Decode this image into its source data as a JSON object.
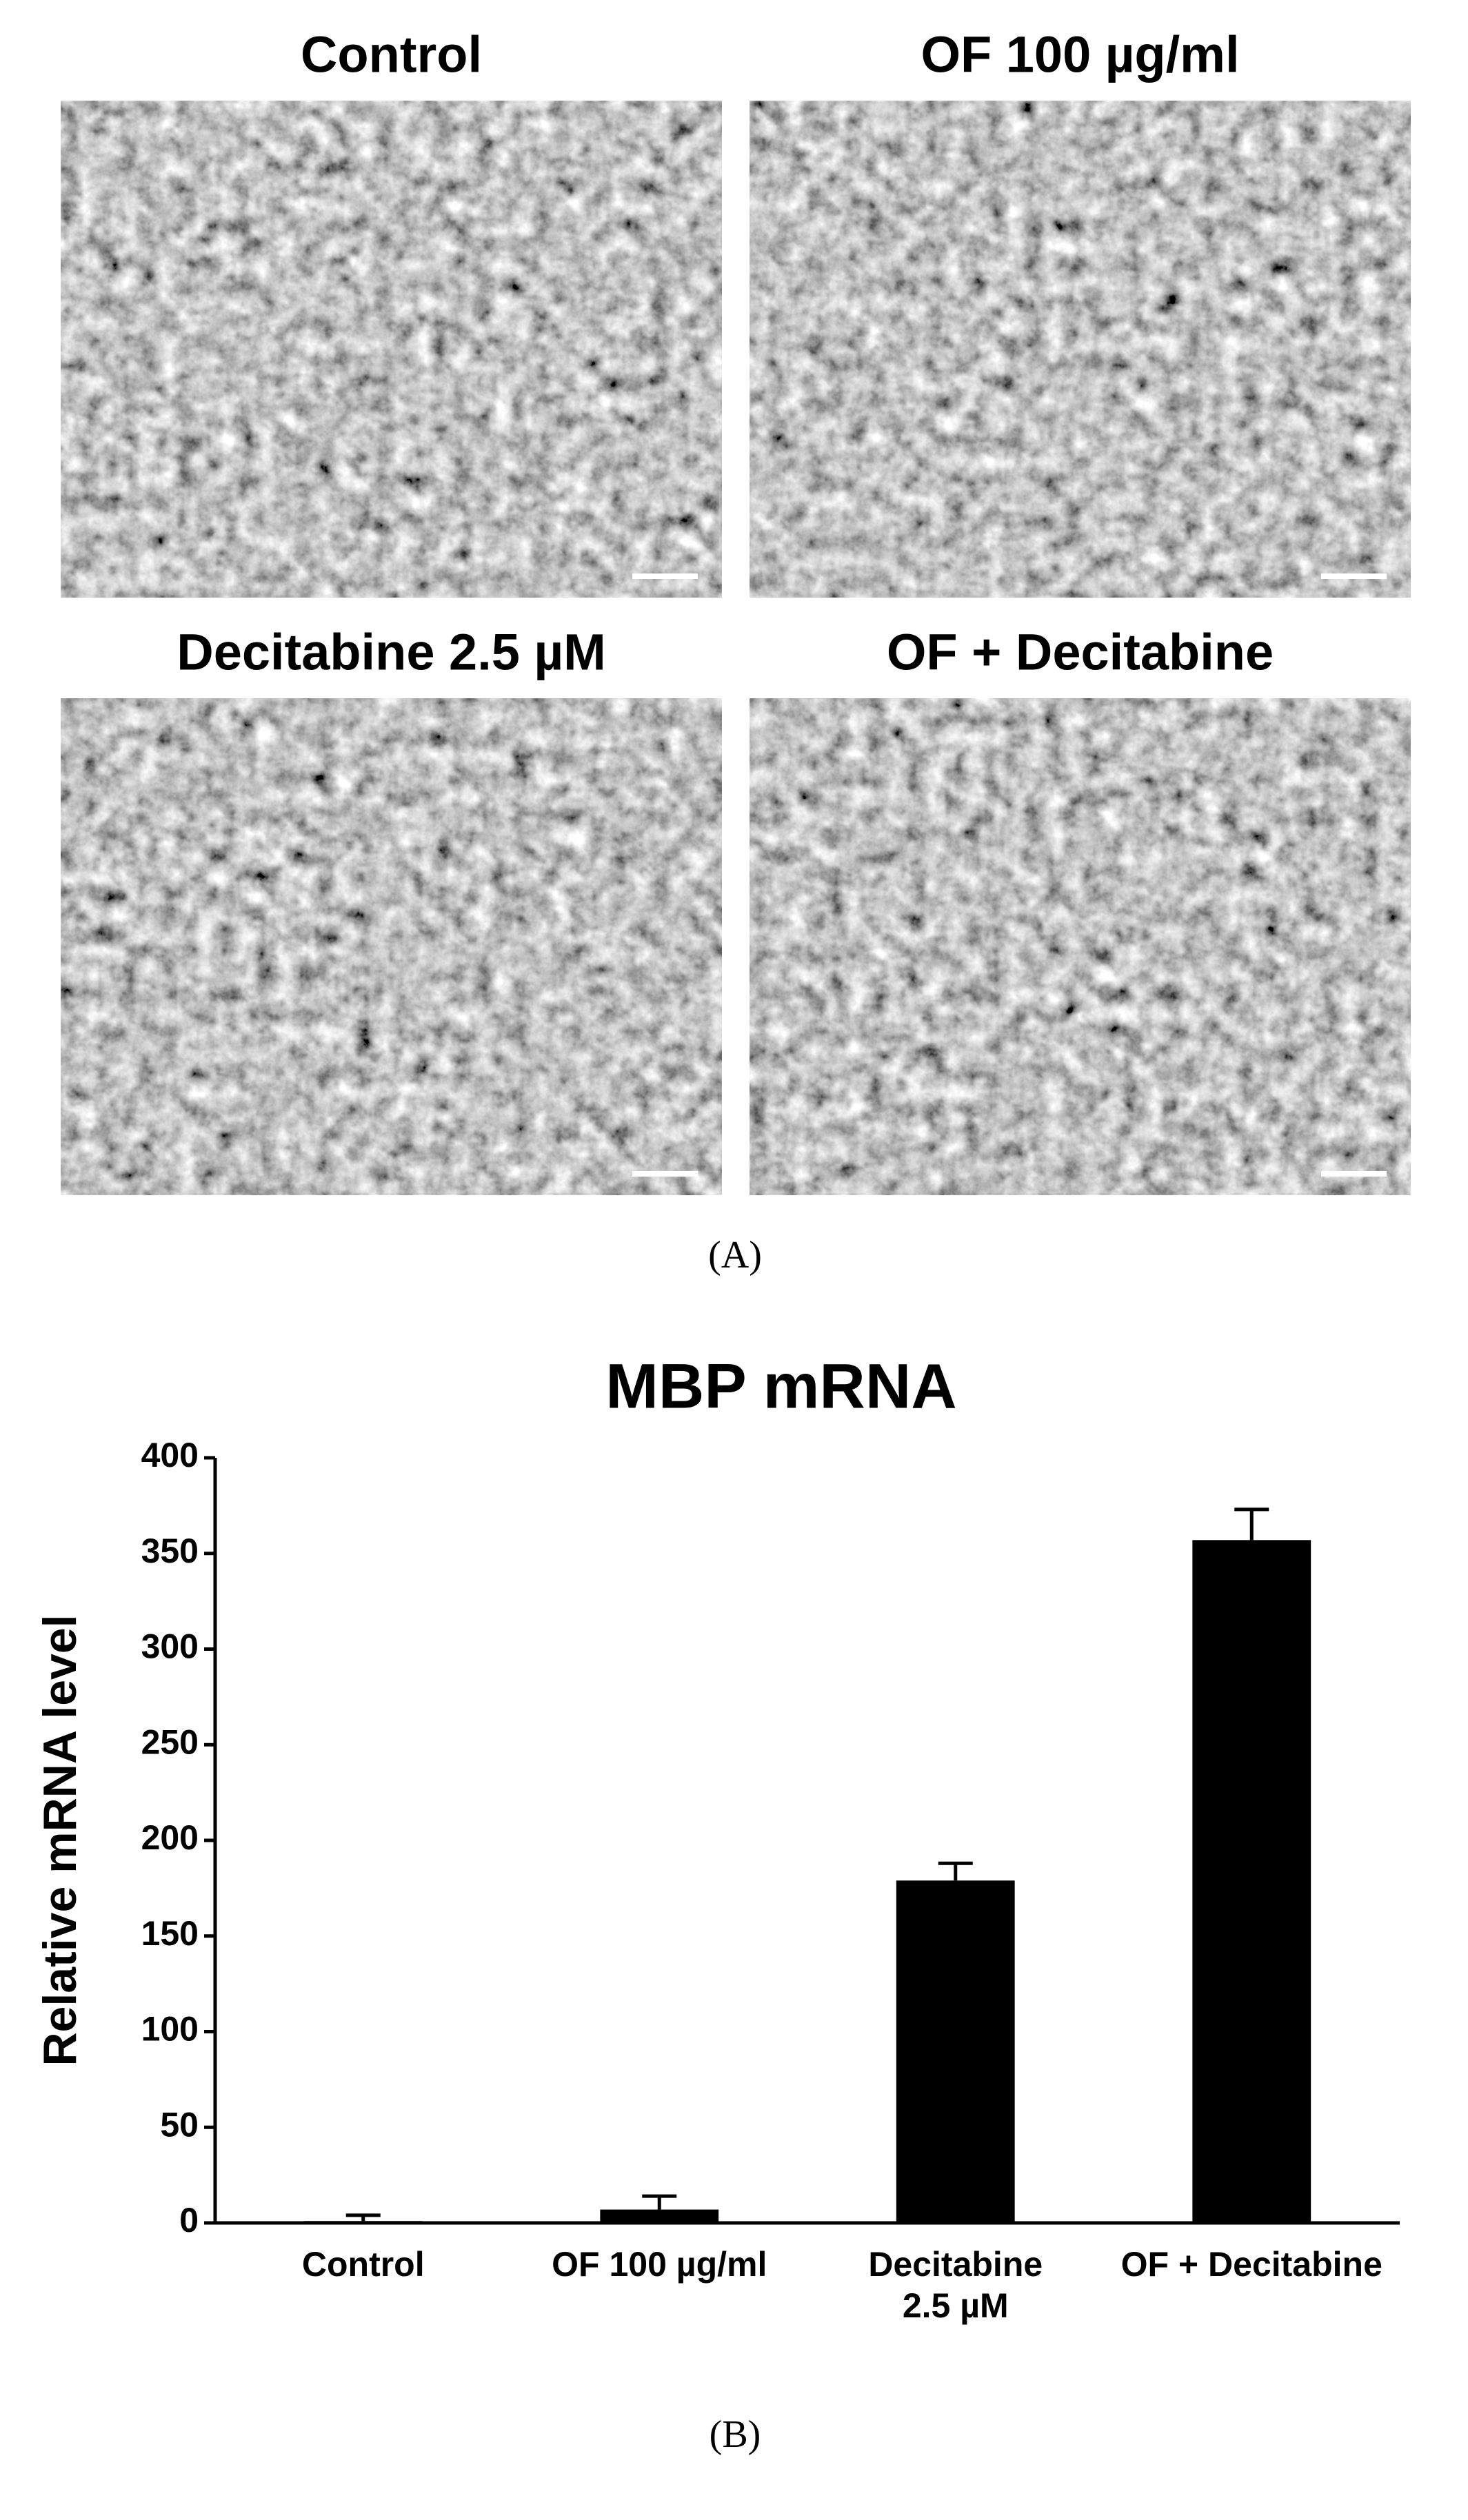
{
  "figure": {
    "panel_a": {
      "label": "(A)",
      "images": [
        {
          "title": "Control"
        },
        {
          "title": "OF 100 µg/ml"
        },
        {
          "title": "Decitabine 2.5 µM"
        },
        {
          "title": "OF + Decitabine"
        }
      ]
    },
    "panel_b": {
      "label": "(B)"
    }
  },
  "chart_data": {
    "type": "bar",
    "title": "MBP mRNA",
    "y_label": "Relative mRNA level",
    "categories": [
      "Control",
      "OF 100 µg/ml",
      "Decitabine\n2.5 µM",
      "OF + Decitabine"
    ],
    "values": [
      1,
      7,
      179,
      357
    ],
    "errors": [
      3,
      7,
      9,
      16
    ],
    "color": "#000000",
    "ylim": [
      0,
      400
    ],
    "yticks": [
      0,
      50,
      100,
      150,
      200,
      250,
      300,
      350,
      400
    ]
  }
}
